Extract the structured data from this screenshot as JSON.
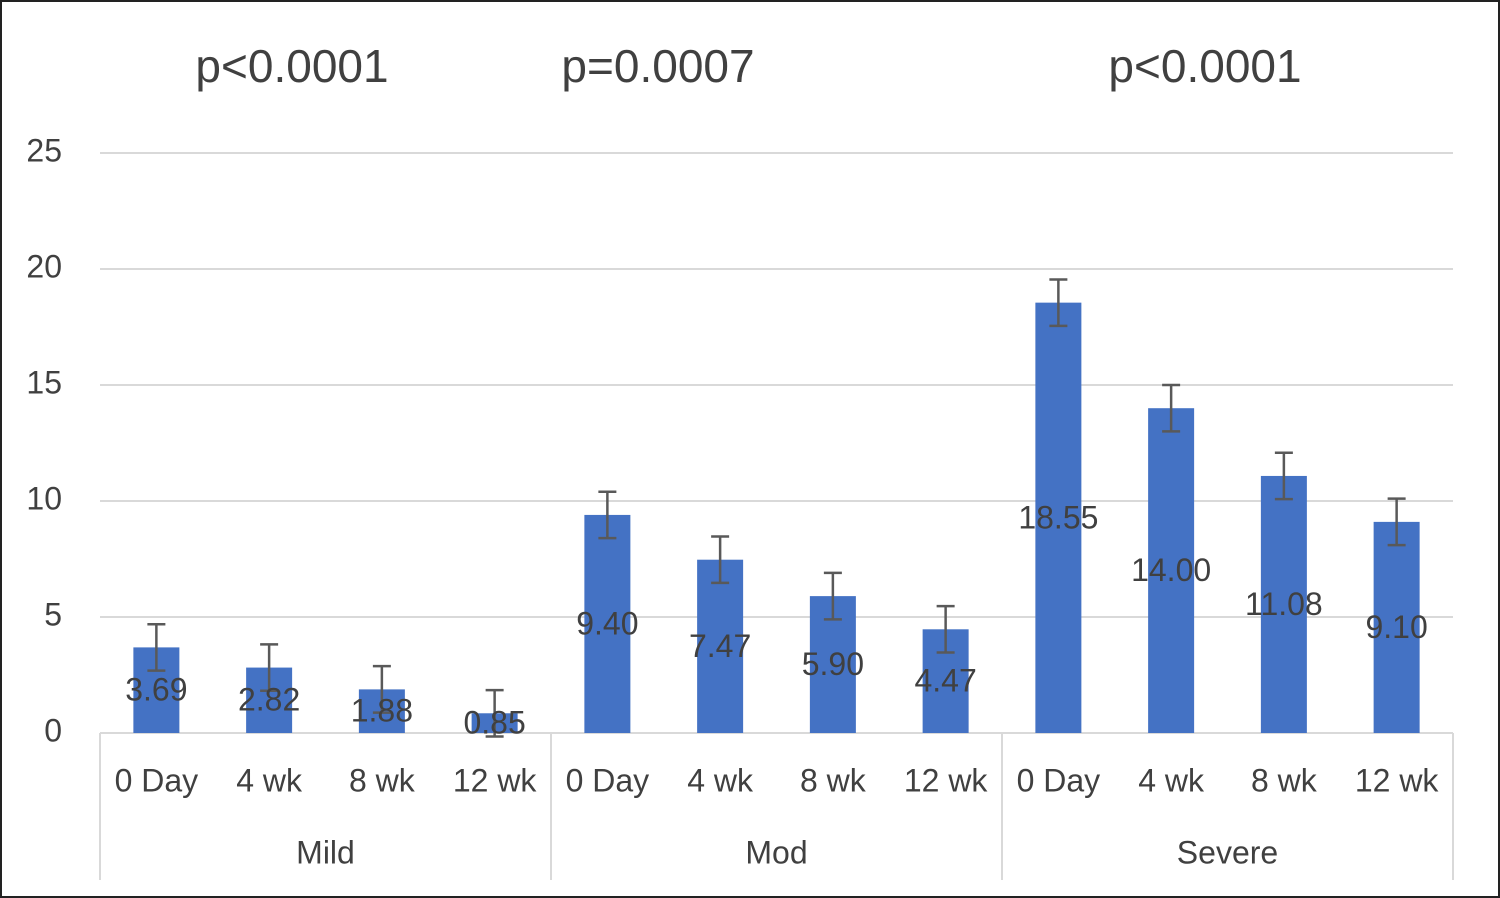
{
  "chart_data": {
    "type": "bar",
    "annotations": [
      "p<0.0001",
      "p=0.0007",
      "p<0.0001"
    ],
    "groups": [
      "Mild",
      "Mod",
      "Severe"
    ],
    "categories": [
      "0 Day",
      "4 wk",
      "8 wk",
      "12 wk",
      "0 Day",
      "4 wk",
      "8 wk",
      "12 wk",
      "0 Day",
      "4 wk",
      "8 wk",
      "12 wk"
    ],
    "values": [
      3.69,
      2.82,
      1.88,
      0.85,
      9.4,
      7.47,
      5.9,
      4.47,
      18.55,
      14,
      11.08,
      9.1
    ],
    "value_labels": [
      "3.69",
      "2.82",
      "1.88",
      "0.85",
      "9.40",
      "7.47",
      "5.90",
      "4.47",
      "18.55",
      "14.00",
      "11.08",
      "9.10"
    ],
    "errors": [
      1,
      1,
      1,
      1,
      1,
      1,
      1,
      1,
      1,
      1,
      1,
      1
    ],
    "color": "#4472c4",
    "ylim": [
      0,
      25
    ],
    "yticks": [
      0,
      5,
      10,
      15,
      20,
      25
    ],
    "grid": true
  }
}
